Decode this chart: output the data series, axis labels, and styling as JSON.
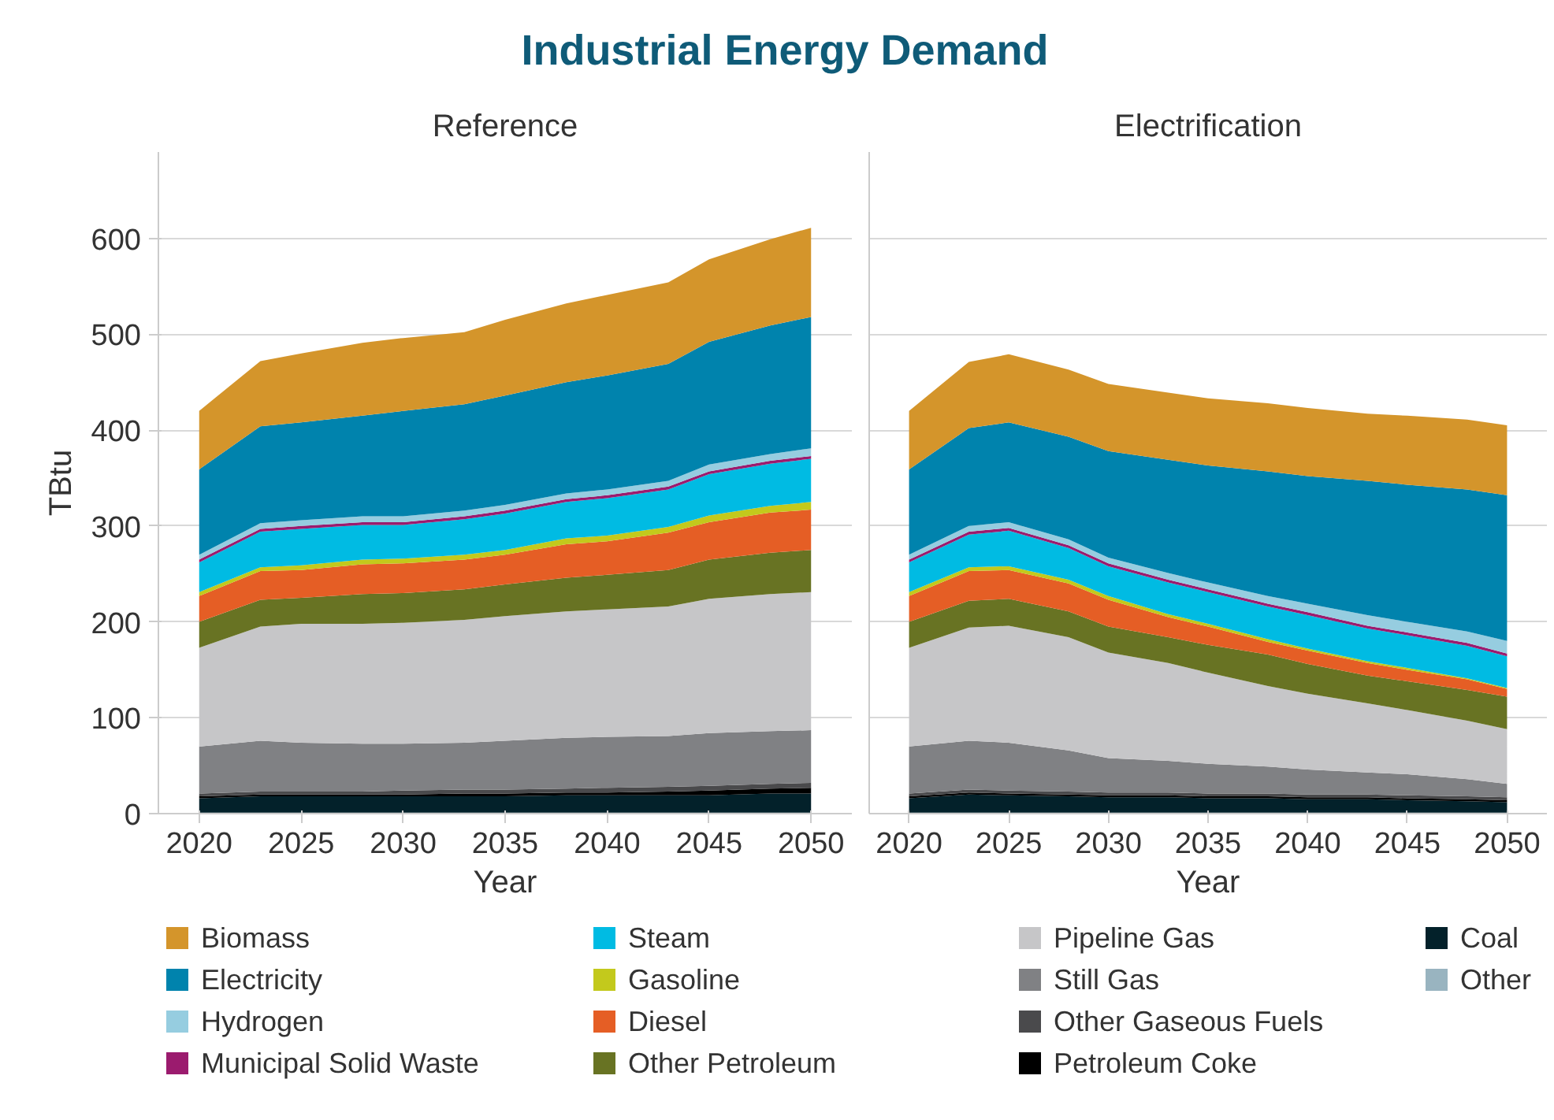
{
  "chart_data": [
    {
      "type": "area",
      "title": "Industrial Energy Demand",
      "subtitle": "Reference",
      "xlabel": "Year",
      "ylabel": "TBtu",
      "stacked": true,
      "grid": "y",
      "legend": "bottom",
      "x": [
        2020,
        2023,
        2025,
        2028,
        2030,
        2033,
        2035,
        2038,
        2040,
        2043,
        2045,
        2048,
        2050
      ],
      "xlim": [
        2018,
        2052
      ],
      "xticks": [
        2020,
        2025,
        2030,
        2035,
        2040,
        2045,
        2050
      ],
      "ylim": [
        0,
        690
      ],
      "yticks": [
        0,
        100,
        200,
        300,
        400,
        500,
        600
      ],
      "series": [
        {
          "name": "Other",
          "color": "#99b4c0",
          "values": [
            1,
            1,
            1,
            1,
            1,
            1,
            1,
            1,
            1,
            1,
            1,
            1,
            1
          ]
        },
        {
          "name": "Coal",
          "color": "#03212a",
          "values": [
            15,
            17,
            17,
            17,
            17,
            17,
            17,
            18,
            18,
            18,
            18,
            20,
            20
          ]
        },
        {
          "name": "Petroleum Coke",
          "color": "#000000",
          "values": [
            2,
            2,
            2,
            2,
            2,
            3,
            3,
            3,
            3,
            4,
            5,
            5,
            6
          ]
        },
        {
          "name": "Other Gaseous Fuels",
          "color": "#4a4a4c",
          "values": [
            3,
            3,
            3,
            3,
            4,
            4,
            4,
            4,
            5,
            5,
            5,
            5,
            5
          ]
        },
        {
          "name": "Still Gas",
          "color": "#808184",
          "values": [
            49,
            53,
            51,
            50,
            49,
            49,
            51,
            53,
            53,
            53,
            55,
            55,
            55
          ]
        },
        {
          "name": "Pipeline Gas",
          "color": "#c6c6c8",
          "values": [
            103,
            119,
            124,
            125,
            126,
            128,
            130,
            132,
            133,
            135,
            140,
            143,
            144
          ]
        },
        {
          "name": "Other Petroleum",
          "color": "#687323",
          "values": [
            27,
            28,
            27,
            31,
            31,
            32,
            33,
            35,
            36,
            38,
            41,
            43,
            44
          ]
        },
        {
          "name": "Diesel",
          "color": "#e55e25",
          "values": [
            27,
            30,
            29,
            31,
            31,
            31,
            31,
            35,
            35,
            39,
            39,
            42,
            42
          ]
        },
        {
          "name": "Gasoline",
          "color": "#c3c91c",
          "values": [
            4,
            4,
            5,
            5,
            5,
            5,
            5,
            6,
            6,
            6,
            7,
            7,
            8
          ]
        },
        {
          "name": "Steam",
          "color": "#00bbe3",
          "values": [
            31,
            37,
            38,
            36,
            35,
            37,
            38,
            38,
            39,
            39,
            43,
            44,
            45
          ]
        },
        {
          "name": "Municipal Solid Waste",
          "color": "#9b1b6e",
          "values": [
            3,
            3,
            3,
            3,
            3,
            3,
            3,
            3,
            3,
            3,
            3,
            3,
            3
          ]
        },
        {
          "name": "Hydrogen",
          "color": "#96cde0",
          "values": [
            5,
            6,
            6,
            6,
            6,
            6,
            6,
            6,
            6,
            6,
            7,
            7,
            8
          ]
        },
        {
          "name": "Electricity",
          "color": "#0083ad",
          "values": [
            89,
            101,
            102,
            105,
            110,
            111,
            114,
            116,
            119,
            122,
            128,
            134,
            137
          ]
        },
        {
          "name": "Biomass",
          "color": "#d4952b",
          "values": [
            61,
            68,
            72,
            76,
            76,
            75,
            79,
            82,
            84,
            85,
            86,
            90,
            93
          ]
        }
      ]
    },
    {
      "type": "area",
      "subtitle": "Electrification",
      "xlabel": "Year",
      "stacked": true,
      "grid": "y",
      "tick_labels": "x",
      "x": [
        2020,
        2023,
        2025,
        2028,
        2030,
        2033,
        2035,
        2038,
        2040,
        2043,
        2045,
        2048,
        2050
      ],
      "xlim": [
        2018,
        2052
      ],
      "xticks": [
        2020,
        2025,
        2030,
        2035,
        2040,
        2045,
        2050
      ],
      "ylim": [
        0,
        690
      ],
      "yticks": [
        0,
        100,
        200,
        300,
        400,
        500,
        600
      ],
      "series": [
        {
          "color": "#99b4c0",
          "values": [
            1,
            1,
            1,
            1,
            1,
            1,
            1,
            1,
            1,
            1,
            1,
            1,
            1
          ]
        },
        {
          "color": "#03212a",
          "values": [
            15,
            19,
            18,
            17,
            16,
            16,
            15,
            15,
            14,
            14,
            13,
            12,
            11
          ]
        },
        {
          "color": "#000000",
          "values": [
            2,
            2,
            2,
            2,
            2,
            2,
            2,
            2,
            2,
            2,
            2,
            2,
            2
          ]
        },
        {
          "color": "#4a4a4c",
          "values": [
            3,
            3,
            3,
            3,
            3,
            3,
            3,
            3,
            3,
            3,
            3,
            3,
            3
          ]
        },
        {
          "color": "#808184",
          "values": [
            49,
            51,
            50,
            43,
            36,
            33,
            31,
            28,
            26,
            23,
            22,
            18,
            14
          ]
        },
        {
          "color": "#c6c6c8",
          "values": [
            103,
            118,
            122,
            118,
            110,
            102,
            95,
            84,
            79,
            72,
            67,
            61,
            57
          ]
        },
        {
          "color": "#687323",
          "values": [
            27,
            28,
            28,
            27,
            27,
            27,
            29,
            33,
            31,
            29,
            30,
            32,
            34
          ]
        },
        {
          "color": "#e55e25",
          "values": [
            27,
            31,
            30,
            29,
            28,
            21,
            19,
            13,
            14,
            13,
            12,
            11,
            8
          ]
        },
        {
          "color": "#c3c91c",
          "values": [
            4,
            4,
            4,
            4,
            4,
            3,
            3,
            3,
            2,
            2,
            2,
            1,
            1
          ]
        },
        {
          "color": "#00bbe3",
          "values": [
            31,
            34,
            37,
            33,
            31,
            33,
            33,
            34,
            35,
            34,
            34,
            34,
            33
          ]
        },
        {
          "color": "#9b1b6e",
          "values": [
            3,
            3,
            3,
            3,
            3,
            3,
            3,
            3,
            3,
            3,
            3,
            3,
            3
          ]
        },
        {
          "color": "#96cde0",
          "values": [
            5,
            6,
            6,
            6,
            6,
            7,
            7,
            8,
            9,
            11,
            11,
            12,
            13
          ]
        },
        {
          "color": "#0083ad",
          "values": [
            89,
            102,
            104,
            107,
            111,
            118,
            122,
            130,
            133,
            140,
            143,
            148,
            152
          ]
        },
        {
          "color": "#d4952b",
          "values": [
            61,
            69,
            71,
            70,
            70,
            70,
            70,
            71,
            71,
            70,
            72,
            73,
            73
          ]
        }
      ]
    }
  ]
}
